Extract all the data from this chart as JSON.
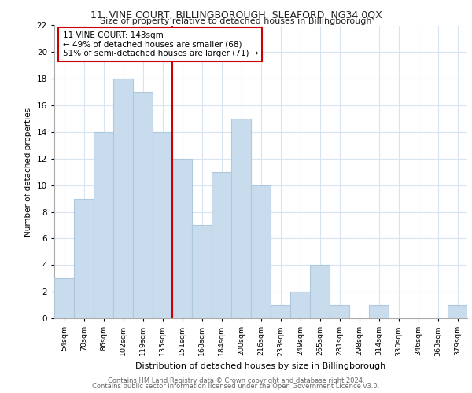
{
  "title": "11, VINE COURT, BILLINGBOROUGH, SLEAFORD, NG34 0QX",
  "subtitle": "Size of property relative to detached houses in Billingborough",
  "xlabel": "Distribution of detached houses by size in Billingborough",
  "ylabel": "Number of detached properties",
  "categories": [
    "54sqm",
    "70sqm",
    "86sqm",
    "102sqm",
    "119sqm",
    "135sqm",
    "151sqm",
    "168sqm",
    "184sqm",
    "200sqm",
    "216sqm",
    "233sqm",
    "249sqm",
    "265sqm",
    "281sqm",
    "298sqm",
    "314sqm",
    "330sqm",
    "346sqm",
    "363sqm",
    "379sqm"
  ],
  "values": [
    3,
    9,
    14,
    18,
    17,
    14,
    12,
    7,
    11,
    15,
    10,
    1,
    2,
    4,
    1,
    0,
    1,
    0,
    0,
    0,
    1
  ],
  "bar_color": "#c8dced",
  "bar_edge_color": "#aec8dd",
  "highlight_line_index": 6,
  "annotation_text": "11 VINE COURT: 143sqm\n← 49% of detached houses are smaller (68)\n51% of semi-detached houses are larger (71) →",
  "annotation_box_color": "#cc0000",
  "ylim": [
    0,
    22
  ],
  "yticks": [
    0,
    2,
    4,
    6,
    8,
    10,
    12,
    14,
    16,
    18,
    20,
    22
  ],
  "grid_color": "#d8e4f0",
  "footer_line1": "Contains HM Land Registry data © Crown copyright and database right 2024.",
  "footer_line2": "Contains public sector information licensed under the Open Government Licence v3.0."
}
